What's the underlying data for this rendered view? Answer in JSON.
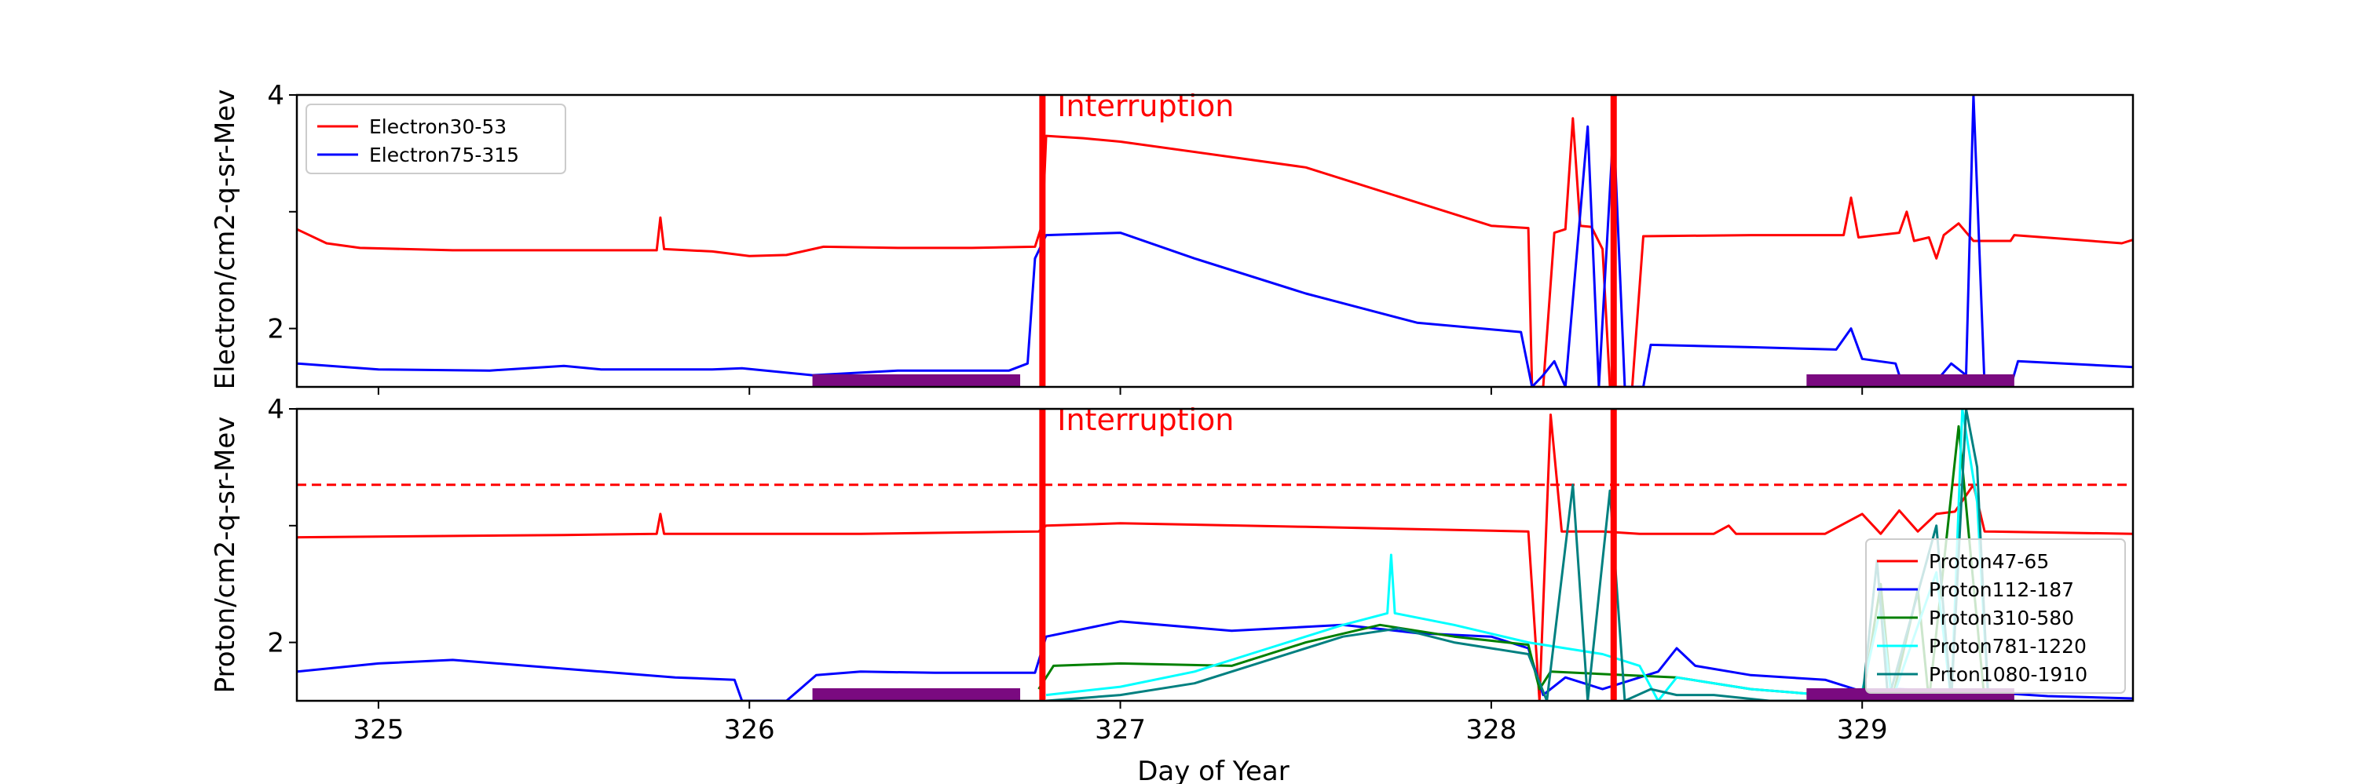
{
  "chart_data": [
    {
      "type": "line",
      "panel": "top",
      "ylabel": "Electron/cm2-q-sr-Mev",
      "ylim": [
        1.5,
        4.0
      ],
      "yticks": [
        {
          "v": 2,
          "label": "2"
        },
        {
          "v": 3,
          "label": ""
        },
        {
          "v": 4,
          "label": "4"
        }
      ],
      "xlim": [
        324.78,
        329.73
      ],
      "xticks": [
        325,
        326,
        327,
        328,
        329
      ],
      "xticklabels_visible": false,
      "grid": false,
      "legend": "top-left",
      "annotations": [
        {
          "text": "Interruption",
          "x": 326.83,
          "y": 3.82,
          "color": "#ff0000"
        }
      ],
      "vlines": [
        {
          "x": 326.79,
          "color": "#ff0000"
        },
        {
          "x": 328.33,
          "color": "#ff0000"
        }
      ],
      "bars": [
        {
          "x0": 326.17,
          "x1": 326.73,
          "y": 1.55,
          "color": "#7a0a80"
        },
        {
          "x0": 328.85,
          "x1": 329.41,
          "y": 1.55,
          "color": "#7a0a80"
        }
      ],
      "series": [
        {
          "name": "Electron30-53",
          "color": "#ff0000",
          "points": [
            [
              324.78,
              2.85
            ],
            [
              324.86,
              2.73
            ],
            [
              324.95,
              2.69
            ],
            [
              325.2,
              2.67
            ],
            [
              325.5,
              2.67
            ],
            [
              325.75,
              2.67
            ],
            [
              325.76,
              2.95
            ],
            [
              325.77,
              2.68
            ],
            [
              325.9,
              2.66
            ],
            [
              326.0,
              2.62
            ],
            [
              326.1,
              2.63
            ],
            [
              326.2,
              2.7
            ],
            [
              326.4,
              2.69
            ],
            [
              326.6,
              2.69
            ],
            [
              326.77,
              2.7
            ],
            [
              326.79,
              2.9
            ],
            [
              326.8,
              3.65
            ],
            [
              326.9,
              3.63
            ],
            [
              327.0,
              3.6
            ],
            [
              327.5,
              3.38
            ],
            [
              328.0,
              2.88
            ],
            [
              328.1,
              2.86
            ],
            [
              328.11,
              1.5
            ],
            [
              328.14,
              1.5
            ],
            [
              328.17,
              2.82
            ],
            [
              328.2,
              2.85
            ],
            [
              328.22,
              3.8
            ],
            [
              328.24,
              2.88
            ],
            [
              328.27,
              2.87
            ],
            [
              328.3,
              2.68
            ],
            [
              328.32,
              1.5
            ],
            [
              328.38,
              1.5
            ],
            [
              328.41,
              2.79
            ],
            [
              328.7,
              2.8
            ],
            [
              328.85,
              2.8
            ],
            [
              328.95,
              2.8
            ],
            [
              328.97,
              3.12
            ],
            [
              328.99,
              2.78
            ],
            [
              329.1,
              2.82
            ],
            [
              329.12,
              3.0
            ],
            [
              329.14,
              2.75
            ],
            [
              329.18,
              2.78
            ],
            [
              329.2,
              2.6
            ],
            [
              329.22,
              2.8
            ],
            [
              329.26,
              2.9
            ],
            [
              329.3,
              2.75
            ],
            [
              329.4,
              2.75
            ],
            [
              329.41,
              2.8
            ],
            [
              329.7,
              2.73
            ],
            [
              329.73,
              2.76
            ]
          ]
        },
        {
          "name": "Electron75-315",
          "color": "#0000ff",
          "points": [
            [
              324.78,
              1.7
            ],
            [
              325.0,
              1.65
            ],
            [
              325.3,
              1.64
            ],
            [
              325.5,
              1.68
            ],
            [
              325.6,
              1.65
            ],
            [
              325.9,
              1.65
            ],
            [
              325.98,
              1.66
            ],
            [
              326.17,
              1.6
            ],
            [
              326.4,
              1.64
            ],
            [
              326.7,
              1.64
            ],
            [
              326.75,
              1.7
            ],
            [
              326.77,
              2.6
            ],
            [
              326.8,
              2.8
            ],
            [
              327.0,
              2.82
            ],
            [
              327.2,
              2.6
            ],
            [
              327.5,
              2.3
            ],
            [
              327.8,
              2.05
            ],
            [
              328.08,
              1.97
            ],
            [
              328.11,
              1.5
            ],
            [
              328.14,
              1.6
            ],
            [
              328.17,
              1.72
            ],
            [
              328.2,
              1.5
            ],
            [
              328.26,
              3.73
            ],
            [
              328.29,
              1.5
            ],
            [
              328.33,
              3.75
            ],
            [
              328.36,
              1.5
            ],
            [
              328.41,
              1.5
            ],
            [
              328.43,
              1.86
            ],
            [
              328.7,
              1.84
            ],
            [
              328.93,
              1.82
            ],
            [
              328.97,
              2.0
            ],
            [
              329.0,
              1.74
            ],
            [
              329.09,
              1.7
            ],
            [
              329.11,
              1.5
            ],
            [
              329.2,
              1.55
            ],
            [
              329.24,
              1.7
            ],
            [
              329.28,
              1.6
            ],
            [
              329.3,
              4.0
            ],
            [
              329.33,
              1.5
            ],
            [
              329.4,
              1.5
            ],
            [
              329.42,
              1.72
            ],
            [
              329.73,
              1.67
            ]
          ]
        }
      ]
    },
    {
      "type": "line",
      "panel": "bottom",
      "xlabel": "Day of Year",
      "ylabel": "Proton/cm2-q-sr-Mev",
      "ylim": [
        1.5,
        4.0
      ],
      "yticks": [
        {
          "v": 2,
          "label": "2"
        },
        {
          "v": 3,
          "label": ""
        },
        {
          "v": 4,
          "label": "4"
        }
      ],
      "xlim": [
        324.78,
        329.73
      ],
      "xticks": [
        325,
        326,
        327,
        328,
        329
      ],
      "xticklabels_visible": true,
      "grid": false,
      "legend": "bottom-right",
      "annotations": [
        {
          "text": "Interruption",
          "x": 326.83,
          "y": 3.82,
          "color": "#ff0000"
        }
      ],
      "hlines": [
        {
          "y": 3.35,
          "color": "#ff0000",
          "dashed": true
        }
      ],
      "vlines": [
        {
          "x": 326.79,
          "color": "#ff0000"
        },
        {
          "x": 328.33,
          "color": "#ff0000"
        }
      ],
      "bars": [
        {
          "x0": 326.17,
          "x1": 326.73,
          "y": 1.55,
          "color": "#7a0a80"
        },
        {
          "x0": 328.85,
          "x1": 329.41,
          "y": 1.55,
          "color": "#7a0a80"
        }
      ],
      "series": [
        {
          "name": "Proton47-65",
          "color": "#ff0000",
          "points": [
            [
              324.78,
              2.9
            ],
            [
              325.5,
              2.92
            ],
            [
              325.75,
              2.93
            ],
            [
              325.76,
              3.1
            ],
            [
              325.77,
              2.93
            ],
            [
              326.3,
              2.93
            ],
            [
              326.78,
              2.95
            ],
            [
              326.8,
              3.0
            ],
            [
              327.0,
              3.02
            ],
            [
              327.5,
              2.99
            ],
            [
              328.1,
              2.95
            ],
            [
              328.13,
              1.5
            ],
            [
              328.16,
              3.95
            ],
            [
              328.19,
              2.95
            ],
            [
              328.3,
              2.95
            ],
            [
              328.4,
              2.93
            ],
            [
              328.6,
              2.93
            ],
            [
              328.64,
              3.0
            ],
            [
              328.66,
              2.93
            ],
            [
              328.9,
              2.93
            ],
            [
              329.0,
              3.1
            ],
            [
              329.05,
              2.93
            ],
            [
              329.1,
              3.13
            ],
            [
              329.15,
              2.95
            ],
            [
              329.2,
              3.1
            ],
            [
              329.25,
              3.12
            ],
            [
              329.3,
              3.35
            ],
            [
              329.33,
              2.95
            ],
            [
              329.73,
              2.93
            ]
          ]
        },
        {
          "name": "Proton112-187",
          "color": "#0000ff",
          "points": [
            [
              324.78,
              1.75
            ],
            [
              325.0,
              1.82
            ],
            [
              325.2,
              1.85
            ],
            [
              325.4,
              1.8
            ],
            [
              325.6,
              1.75
            ],
            [
              325.8,
              1.7
            ],
            [
              325.96,
              1.68
            ],
            [
              325.98,
              1.5
            ],
            [
              326.1,
              1.5
            ],
            [
              326.18,
              1.72
            ],
            [
              326.3,
              1.75
            ],
            [
              326.5,
              1.74
            ],
            [
              326.77,
              1.74
            ],
            [
              326.8,
              2.05
            ],
            [
              327.0,
              2.18
            ],
            [
              327.3,
              2.1
            ],
            [
              327.6,
              2.15
            ],
            [
              327.8,
              2.08
            ],
            [
              328.0,
              2.05
            ],
            [
              328.1,
              1.95
            ],
            [
              328.14,
              1.55
            ],
            [
              328.2,
              1.7
            ],
            [
              328.3,
              1.6
            ],
            [
              328.45,
              1.75
            ],
            [
              328.5,
              1.95
            ],
            [
              328.55,
              1.8
            ],
            [
              328.7,
              1.72
            ],
            [
              328.9,
              1.68
            ],
            [
              329.0,
              1.58
            ],
            [
              329.1,
              1.6
            ],
            [
              329.3,
              1.58
            ],
            [
              329.5,
              1.54
            ],
            [
              329.73,
              1.52
            ]
          ]
        },
        {
          "name": "Proton310-580",
          "color": "#008000",
          "points": [
            [
              326.78,
              1.6
            ],
            [
              326.82,
              1.8
            ],
            [
              327.0,
              1.82
            ],
            [
              327.3,
              1.8
            ],
            [
              327.5,
              2.0
            ],
            [
              327.7,
              2.15
            ],
            [
              327.9,
              2.05
            ],
            [
              328.1,
              1.98
            ],
            [
              328.13,
              1.6
            ],
            [
              328.16,
              1.75
            ],
            [
              328.5,
              1.7
            ],
            [
              328.7,
              1.6
            ],
            [
              328.9,
              1.55
            ],
            [
              329.0,
              1.5
            ],
            [
              329.05,
              2.5
            ],
            [
              329.08,
              1.5
            ],
            [
              329.15,
              2.45
            ],
            [
              329.18,
              1.5
            ],
            [
              329.26,
              3.85
            ],
            [
              329.3,
              2.5
            ],
            [
              329.33,
              1.5
            ]
          ]
        },
        {
          "name": "Proton781-1220",
          "color": "#00ffff",
          "points": [
            [
              326.8,
              1.55
            ],
            [
              327.0,
              1.62
            ],
            [
              327.2,
              1.75
            ],
            [
              327.4,
              1.95
            ],
            [
              327.6,
              2.15
            ],
            [
              327.72,
              2.25
            ],
            [
              327.73,
              2.75
            ],
            [
              327.74,
              2.25
            ],
            [
              327.9,
              2.15
            ],
            [
              328.1,
              2.0
            ],
            [
              328.3,
              1.9
            ],
            [
              328.4,
              1.8
            ],
            [
              328.45,
              1.5
            ],
            [
              328.5,
              1.7
            ],
            [
              328.7,
              1.6
            ],
            [
              328.9,
              1.55
            ],
            [
              329.0,
              1.58
            ],
            [
              329.05,
              2.3
            ],
            [
              329.08,
              1.5
            ],
            [
              329.2,
              2.6
            ],
            [
              329.24,
              1.5
            ],
            [
              329.27,
              4.0
            ],
            [
              329.31,
              3.2
            ],
            [
              329.34,
              1.5
            ]
          ]
        },
        {
          "name": "Prton1080-1910",
          "color": "#008080",
          "points": [
            [
              326.8,
              1.5
            ],
            [
              327.0,
              1.55
            ],
            [
              327.2,
              1.65
            ],
            [
              327.4,
              1.85
            ],
            [
              327.6,
              2.05
            ],
            [
              327.75,
              2.12
            ],
            [
              327.9,
              2.0
            ],
            [
              328.1,
              1.9
            ],
            [
              328.15,
              1.5
            ],
            [
              328.22,
              3.35
            ],
            [
              328.26,
              1.5
            ],
            [
              328.32,
              3.3
            ],
            [
              328.36,
              1.5
            ],
            [
              328.43,
              1.6
            ],
            [
              328.5,
              1.55
            ],
            [
              328.6,
              1.55
            ],
            [
              328.75,
              1.5
            ],
            [
              329.0,
              1.5
            ],
            [
              329.04,
              2.7
            ],
            [
              329.07,
              1.5
            ],
            [
              329.2,
              3.0
            ],
            [
              329.24,
              1.5
            ],
            [
              329.28,
              4.0
            ],
            [
              329.31,
              3.5
            ],
            [
              329.34,
              1.5
            ]
          ]
        }
      ]
    }
  ]
}
